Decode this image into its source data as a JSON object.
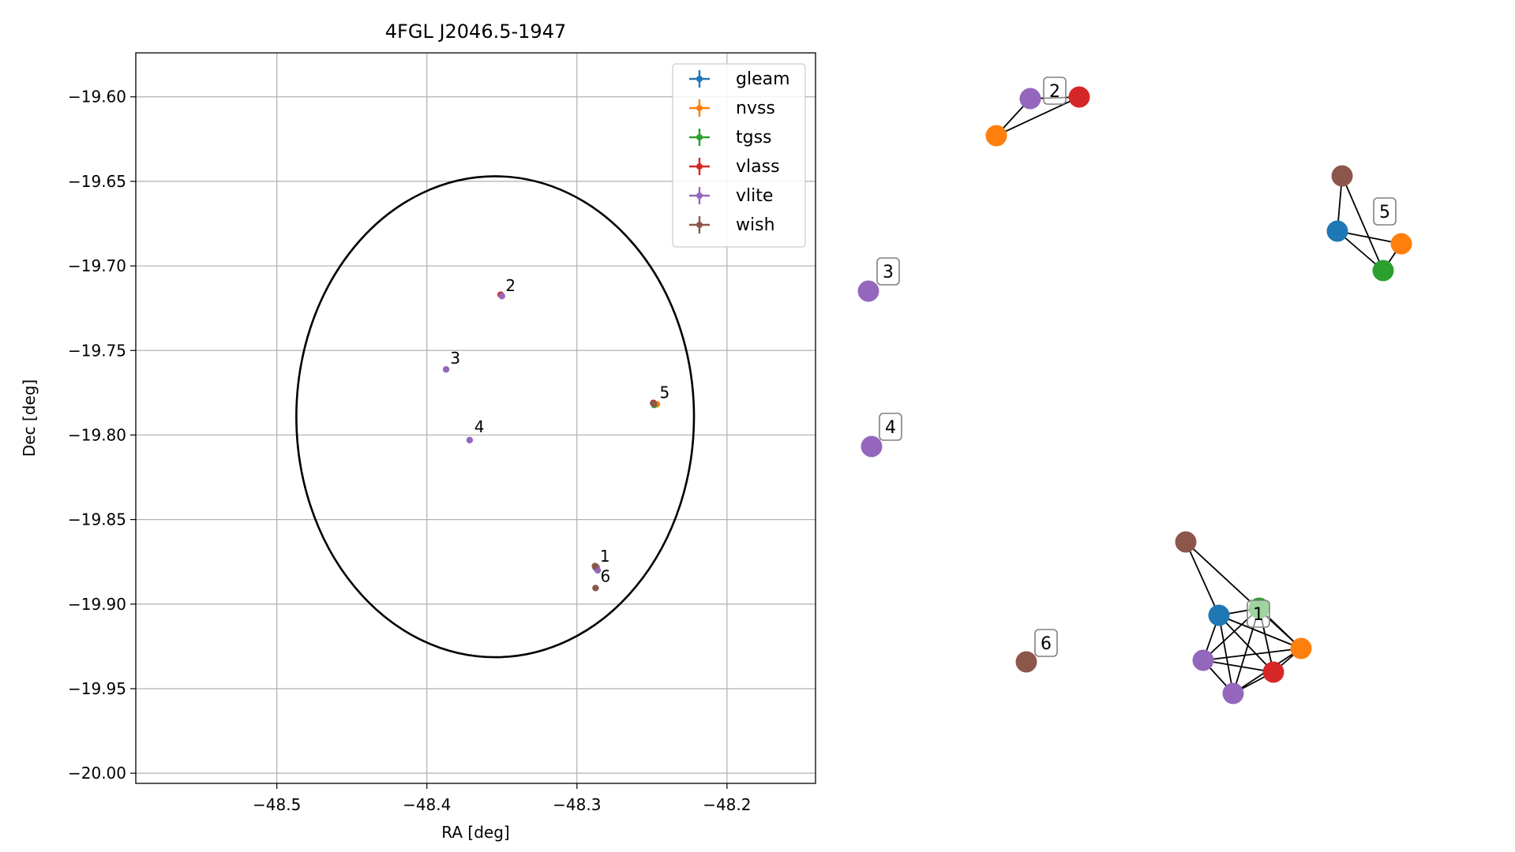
{
  "chart_data": [
    {
      "type": "scatter",
      "title": "4FGL J2046.5-1947",
      "xlabel": "RA [deg]",
      "ylabel": "Dec [deg]",
      "xlim": [
        -48.594,
        -48.141
      ],
      "ylim": [
        -20.006,
        -19.574
      ],
      "xticks": [
        -48.5,
        -48.4,
        -48.3,
        -48.2
      ],
      "xtick_labels": [
        "−48.5",
        "−48.4",
        "−48.3",
        "−48.2"
      ],
      "yticks": [
        -19.6,
        -19.65,
        -19.7,
        -19.75,
        -19.8,
        -19.85,
        -19.9,
        -19.95,
        -20.0
      ],
      "ytick_labels": [
        "−19.60",
        "−19.65",
        "−19.70",
        "−19.75",
        "−19.80",
        "−19.85",
        "−19.90",
        "−19.95",
        "−20.00"
      ],
      "grid": true,
      "legend_position": "top-right",
      "series": [
        {
          "name": "gleam",
          "color": "#1f77b4",
          "points": [
            {
              "x": -48.2875,
              "y": -19.8785
            },
            {
              "x": -48.2492,
              "y": -19.7812
            }
          ]
        },
        {
          "name": "nvss",
          "color": "#ff7f0e",
          "points": [
            {
              "x": -48.2868,
              "y": -19.8782
            },
            {
              "x": -48.2467,
              "y": -19.7818
            }
          ]
        },
        {
          "name": "tgss",
          "color": "#2ca02c",
          "points": [
            {
              "x": -48.2872,
              "y": -19.878
            },
            {
              "x": -48.2485,
              "y": -19.7822
            }
          ]
        },
        {
          "name": "vlass",
          "color": "#d62728",
          "points": [
            {
              "x": -48.2876,
              "y": -19.8778
            },
            {
              "x": -48.3508,
              "y": -19.717
            },
            {
              "x": -48.249,
              "y": -19.781
            }
          ]
        },
        {
          "name": "vlite",
          "color": "#9467bd",
          "points": [
            {
              "x": -48.2871,
              "y": -19.8784
            },
            {
              "x": -48.2862,
              "y": -19.88
            },
            {
              "x": -48.35,
              "y": -19.7178
            },
            {
              "x": -48.3872,
              "y": -19.7612
            },
            {
              "x": -48.3715,
              "y": -19.803
            }
          ]
        },
        {
          "name": "wish",
          "color": "#8c564b",
          "points": [
            {
              "x": -48.288,
              "y": -19.8775
            },
            {
              "x": -48.2876,
              "y": -19.8905
            },
            {
              "x": -48.2488,
              "y": -19.7815
            }
          ]
        }
      ],
      "ellipse": {
        "center_x": -48.3545,
        "center_y": -19.7892,
        "semi_axis_x": 0.1325,
        "semi_axis_y": 0.1422,
        "color": "#000000"
      },
      "annotations": [
        {
          "text": "1",
          "x": -48.2868,
          "y": -19.875
        },
        {
          "text": "2",
          "x": -48.3497,
          "y": -19.7148
        },
        {
          "text": "3",
          "x": -48.3865,
          "y": -19.7578
        },
        {
          "text": "4",
          "x": -48.3705,
          "y": -19.7985
        },
        {
          "text": "5",
          "x": -48.247,
          "y": -19.7782
        },
        {
          "text": "6",
          "x": -48.2865,
          "y": -19.8868
        }
      ]
    },
    {
      "type": "network",
      "nodes": [
        {
          "id": "g2-vlite",
          "group": "2",
          "color": "#9467bd"
        },
        {
          "id": "g2-vlass",
          "group": "2",
          "color": "#d62728"
        },
        {
          "id": "g2-nvss",
          "group": "2",
          "color": "#ff7f0e"
        },
        {
          "id": "g5-wish",
          "group": "5",
          "color": "#8c564b"
        },
        {
          "id": "g5-gleam",
          "group": "5",
          "color": "#1f77b4"
        },
        {
          "id": "g5-nvss",
          "group": "5",
          "color": "#ff7f0e"
        },
        {
          "id": "g5-tgss",
          "group": "5",
          "color": "#2ca02c"
        },
        {
          "id": "g3-vlite",
          "group": "3",
          "color": "#9467bd"
        },
        {
          "id": "g4-vlite",
          "group": "4",
          "color": "#9467bd"
        },
        {
          "id": "g1-wish",
          "group": "1",
          "color": "#8c564b"
        },
        {
          "id": "g1-tgss",
          "group": "1",
          "color": "#2ca02c"
        },
        {
          "id": "g1-gleam",
          "group": "1",
          "color": "#1f77b4"
        },
        {
          "id": "g1-nvss",
          "group": "1",
          "color": "#ff7f0e"
        },
        {
          "id": "g1-vlite-a",
          "group": "1",
          "color": "#9467bd"
        },
        {
          "id": "g1-vlass",
          "group": "1",
          "color": "#d62728"
        },
        {
          "id": "g1-vlite-b",
          "group": "1",
          "color": "#9467bd"
        },
        {
          "id": "g6-wish",
          "group": "6",
          "color": "#8c564b"
        }
      ],
      "edges": [
        [
          "g2-nvss",
          "g2-vlite"
        ],
        [
          "g2-nvss",
          "g2-vlass"
        ],
        [
          "g2-vlite",
          "g2-vlass"
        ],
        [
          "g5-wish",
          "g5-gleam"
        ],
        [
          "g5-wish",
          "g5-tgss"
        ],
        [
          "g5-gleam",
          "g5-nvss"
        ],
        [
          "g5-gleam",
          "g5-tgss"
        ],
        [
          "g5-nvss",
          "g5-tgss"
        ],
        [
          "g1-wish",
          "g1-gleam"
        ],
        [
          "g1-wish",
          "g1-nvss"
        ],
        [
          "g1-tgss",
          "g1-gleam"
        ],
        [
          "g1-tgss",
          "g1-nvss"
        ],
        [
          "g1-tgss",
          "g1-vlite-a"
        ],
        [
          "g1-tgss",
          "g1-vlass"
        ],
        [
          "g1-tgss",
          "g1-vlite-b"
        ],
        [
          "g1-gleam",
          "g1-nvss"
        ],
        [
          "g1-gleam",
          "g1-vlite-a"
        ],
        [
          "g1-gleam",
          "g1-vlass"
        ],
        [
          "g1-gleam",
          "g1-vlite-b"
        ],
        [
          "g1-nvss",
          "g1-vlite-a"
        ],
        [
          "g1-nvss",
          "g1-vlass"
        ],
        [
          "g1-nvss",
          "g1-vlite-b"
        ],
        [
          "g1-vlite-a",
          "g1-vlass"
        ],
        [
          "g1-vlite-a",
          "g1-vlite-b"
        ],
        [
          "g1-vlass",
          "g1-vlite-b"
        ]
      ],
      "labels": [
        {
          "text": "1"
        },
        {
          "text": "2"
        },
        {
          "text": "3"
        },
        {
          "text": "4"
        },
        {
          "text": "5"
        },
        {
          "text": "6"
        }
      ]
    }
  ]
}
